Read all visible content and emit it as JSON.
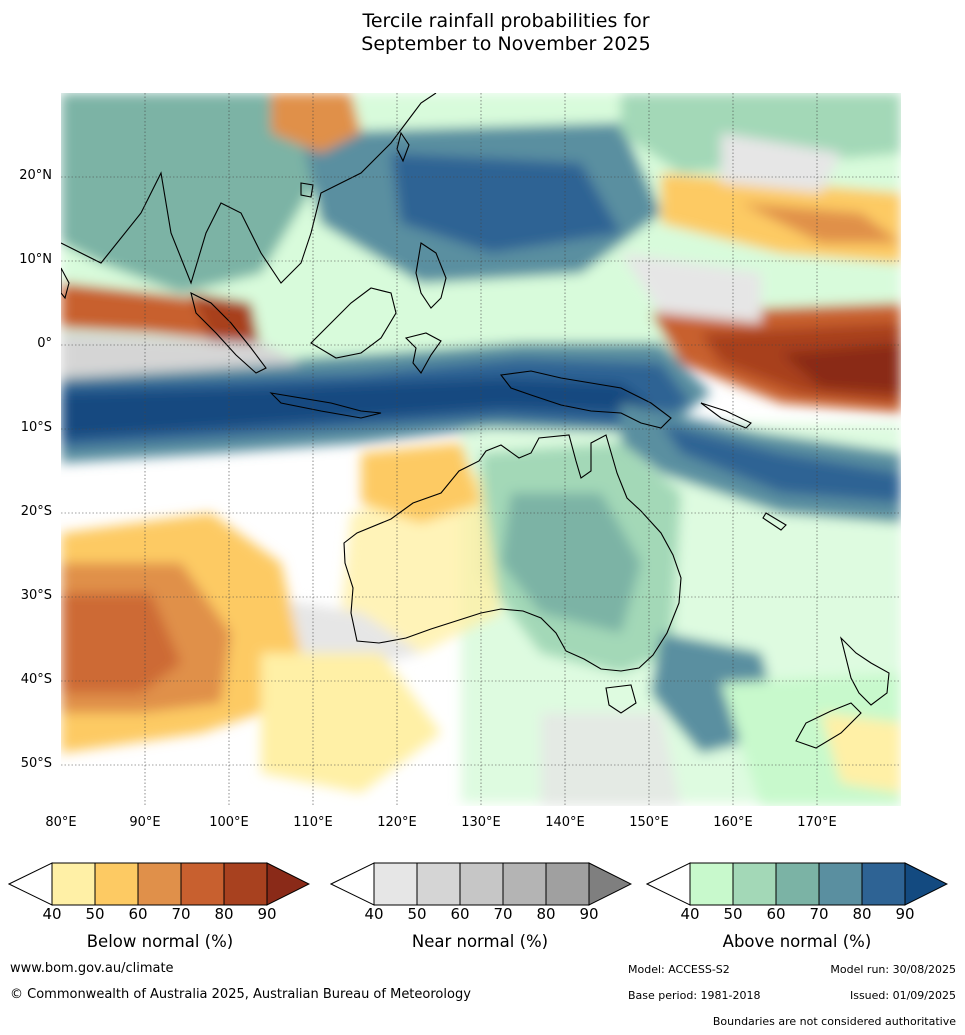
{
  "title_line1": "Tercile rainfall probabilities for",
  "title_line2": "September to November 2025",
  "map": {
    "lon_range": [
      80,
      180
    ],
    "lat_range": [
      -55,
      30
    ],
    "lat_labels": [
      "20°N",
      "10°N",
      "0°",
      "10°S",
      "20°S",
      "30°S",
      "40°S",
      "50°S"
    ],
    "lon_labels": [
      "80°E",
      "90°E",
      "100°E",
      "110°E",
      "120°E",
      "130°E",
      "140°E",
      "150°E",
      "160°E",
      "170°E"
    ]
  },
  "colorbars": [
    {
      "title": "Below normal (%)",
      "ticks": [
        "40",
        "50",
        "60",
        "70",
        "80",
        "90"
      ],
      "colors": [
        "#fff0a6",
        "#fdca63",
        "#e0904a",
        "#c8602f",
        "#a8411f",
        "#8a2a18"
      ]
    },
    {
      "title": "Near normal (%)",
      "ticks": [
        "40",
        "50",
        "60",
        "70",
        "80",
        "90"
      ],
      "colors": [
        "#e6e6e6",
        "#d5d5d5",
        "#c6c6c6",
        "#b4b4b4",
        "#a0a0a0",
        "#7f7f7f"
      ]
    },
    {
      "title": "Above normal (%)",
      "ticks": [
        "40",
        "50",
        "60",
        "70",
        "80",
        "90"
      ],
      "colors": [
        "#c8f9cc",
        "#a3d8b7",
        "#7bb3a5",
        "#5a8fa0",
        "#2e6394",
        "#134a80"
      ]
    }
  ],
  "footer": {
    "website": "www.bom.gov.au/climate",
    "copyright": "© Commonwealth of Australia 2025, Australian Bureau of Meteorology",
    "model": "Model: ACCESS-S2",
    "model_run": "Model run: 30/08/2025",
    "base_period": "Base period: 1981-2018",
    "issued": "Issued: 01/09/2025",
    "disclaimer": "Boundaries are not considered authoritative"
  }
}
